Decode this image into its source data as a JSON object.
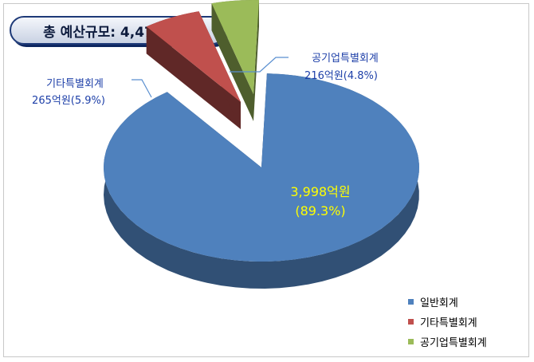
{
  "chart_data": {
    "type": "pie",
    "title": "총 예산규모: 4,479억 원",
    "unit": "억원",
    "slices": [
      {
        "name": "일반회계",
        "value": 3998,
        "percent": 89.3,
        "value_label": "3,998억원",
        "percent_label": "(89.3%)",
        "color": "#4f81bd"
      },
      {
        "name": "기타특별회계",
        "value": 265,
        "percent": 5.9,
        "value_label": "265억원(5.9%)",
        "color": "#c0504d"
      },
      {
        "name": "공기업특별회계",
        "value": 216,
        "percent": 4.8,
        "value_label": "216억원(4.8%)",
        "color": "#9bbb59"
      }
    ],
    "legend": [
      "일반회계",
      "기타특별회계",
      "공기업특별회계"
    ],
    "legend_position": "bottom-right"
  }
}
